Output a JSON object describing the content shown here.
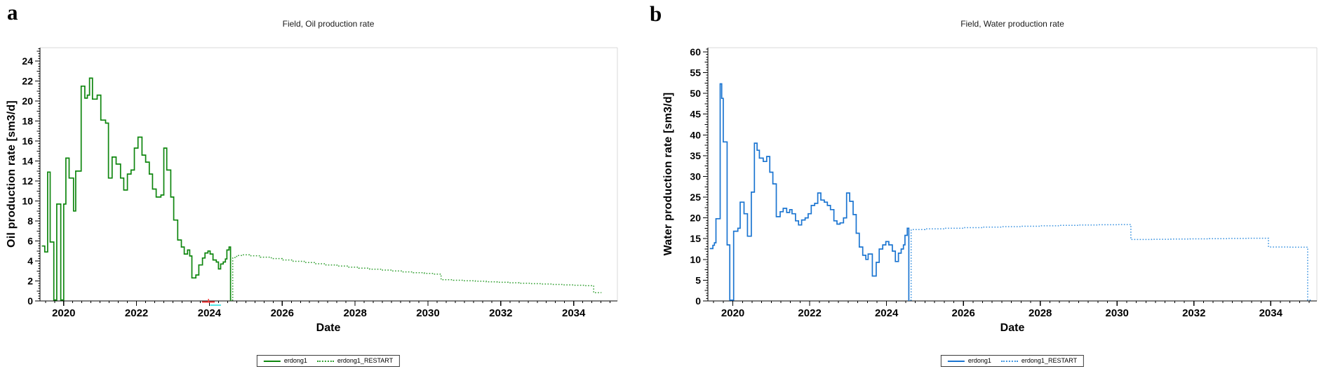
{
  "chart_data": [
    {
      "type": "line",
      "panel_label": "a",
      "title": "Field, Oil production rate",
      "xlabel": "Date",
      "ylabel": "Oil production rate [sm3/d]",
      "xlim": [
        2019.35,
        2035.2
      ],
      "ylim": [
        0,
        25.35
      ],
      "xticks": [
        2020,
        2022,
        2024,
        2026,
        2028,
        2030,
        2032,
        2034
      ],
      "yticks": [
        0,
        2,
        4,
        6,
        8,
        10,
        12,
        14,
        16,
        18,
        20,
        22,
        24
      ],
      "y_minor_step": 0.25,
      "y_medium_step": 1,
      "x_minor_step": 0.25,
      "grid": false,
      "step": true,
      "legend_position": "bottom-center",
      "series": [
        {
          "name": "erdong1",
          "style": "solid",
          "color": "#0e860e",
          "points": [
            [
              2019.4,
              5.5
            ],
            [
              2019.48,
              4.9
            ],
            [
              2019.56,
              12.9
            ],
            [
              2019.63,
              5.9
            ],
            [
              2019.73,
              0.1
            ],
            [
              2019.81,
              9.7
            ],
            [
              2019.92,
              0.1
            ],
            [
              2020.0,
              9.7
            ],
            [
              2020.06,
              14.3
            ],
            [
              2020.15,
              12.3
            ],
            [
              2020.27,
              9.0
            ],
            [
              2020.33,
              13.0
            ],
            [
              2020.48,
              21.5
            ],
            [
              2020.58,
              20.3
            ],
            [
              2020.65,
              20.6
            ],
            [
              2020.71,
              22.3
            ],
            [
              2020.79,
              20.2
            ],
            [
              2020.92,
              20.6
            ],
            [
              2021.02,
              18.1
            ],
            [
              2021.15,
              17.8
            ],
            [
              2021.23,
              12.3
            ],
            [
              2021.33,
              14.4
            ],
            [
              2021.44,
              13.7
            ],
            [
              2021.56,
              12.3
            ],
            [
              2021.65,
              11.1
            ],
            [
              2021.75,
              12.7
            ],
            [
              2021.85,
              13.1
            ],
            [
              2021.94,
              15.3
            ],
            [
              2022.04,
              16.4
            ],
            [
              2022.15,
              14.6
            ],
            [
              2022.25,
              13.9
            ],
            [
              2022.35,
              12.7
            ],
            [
              2022.44,
              11.2
            ],
            [
              2022.54,
              10.4
            ],
            [
              2022.67,
              10.6
            ],
            [
              2022.75,
              15.3
            ],
            [
              2022.83,
              13.1
            ],
            [
              2022.94,
              10.4
            ],
            [
              2023.02,
              8.1
            ],
            [
              2023.13,
              6.1
            ],
            [
              2023.23,
              5.4
            ],
            [
              2023.31,
              4.7
            ],
            [
              2023.4,
              5.1
            ],
            [
              2023.46,
              4.5
            ],
            [
              2023.52,
              2.3
            ],
            [
              2023.63,
              2.6
            ],
            [
              2023.71,
              3.6
            ],
            [
              2023.81,
              4.3
            ],
            [
              2023.88,
              4.8
            ],
            [
              2023.96,
              5.0
            ],
            [
              2024.02,
              4.7
            ],
            [
              2024.1,
              4.1
            ],
            [
              2024.19,
              3.9
            ],
            [
              2024.25,
              3.2
            ],
            [
              2024.31,
              3.7
            ],
            [
              2024.38,
              3.9
            ],
            [
              2024.44,
              4.2
            ],
            [
              2024.48,
              5.1
            ],
            [
              2024.54,
              5.4
            ],
            [
              2024.58,
              0.0
            ]
          ]
        },
        {
          "name": "erdong1_RESTART",
          "style": "dotted",
          "color": "#2f9e2f",
          "points": [
            [
              2024.62,
              0.1
            ],
            [
              2024.64,
              4.35
            ],
            [
              2024.75,
              4.55
            ],
            [
              2024.88,
              4.62
            ],
            [
              2025.1,
              4.52
            ],
            [
              2025.4,
              4.38
            ],
            [
              2025.7,
              4.24
            ],
            [
              2026.0,
              4.1
            ],
            [
              2026.3,
              3.97
            ],
            [
              2026.6,
              3.84
            ],
            [
              2026.9,
              3.72
            ],
            [
              2027.2,
              3.6
            ],
            [
              2027.5,
              3.49
            ],
            [
              2027.8,
              3.38
            ],
            [
              2028.1,
              3.28
            ],
            [
              2028.4,
              3.18
            ],
            [
              2028.7,
              3.09
            ],
            [
              2029.0,
              3.0
            ],
            [
              2029.3,
              2.91
            ],
            [
              2029.6,
              2.83
            ],
            [
              2029.9,
              2.75
            ],
            [
              2030.15,
              2.68
            ],
            [
              2030.36,
              2.12
            ],
            [
              2030.7,
              2.07
            ],
            [
              2031.0,
              2.02
            ],
            [
              2031.3,
              1.97
            ],
            [
              2031.6,
              1.92
            ],
            [
              2031.9,
              1.87
            ],
            [
              2032.2,
              1.82
            ],
            [
              2032.5,
              1.77
            ],
            [
              2032.8,
              1.73
            ],
            [
              2033.1,
              1.69
            ],
            [
              2033.4,
              1.65
            ],
            [
              2033.7,
              1.61
            ],
            [
              2034.0,
              1.57
            ],
            [
              2034.3,
              1.53
            ],
            [
              2034.55,
              0.82
            ],
            [
              2034.75,
              0.8
            ]
          ]
        }
      ],
      "axis_markers": [
        {
          "color": "#ff4040",
          "x_start": 2023.8,
          "x_end": 2024.15,
          "row": "on-axis",
          "shape": "dash-with-tick"
        },
        {
          "color": "#55e6e6",
          "x_start": 2024.02,
          "x_end": 2024.32,
          "row": "below-axis",
          "shape": "dash"
        }
      ]
    },
    {
      "type": "line",
      "panel_label": "b",
      "title": "Field, Water production rate",
      "xlabel": "Date",
      "ylabel": "Water production rate [sm3/d]",
      "xlim": [
        2019.35,
        2035.2
      ],
      "ylim": [
        0,
        61
      ],
      "xticks": [
        2020,
        2022,
        2024,
        2026,
        2028,
        2030,
        2032,
        2034
      ],
      "yticks": [
        0,
        5,
        10,
        15,
        20,
        25,
        30,
        35,
        40,
        45,
        50,
        55,
        60
      ],
      "y_minor_step": 0.625,
      "y_medium_step": 2.5,
      "x_minor_step": 0.25,
      "grid": false,
      "step": true,
      "legend_position": "bottom-center",
      "series": [
        {
          "name": "erdong1",
          "style": "solid",
          "color": "#1b75d1",
          "points": [
            [
              2019.4,
              12.6
            ],
            [
              2019.48,
              13.4
            ],
            [
              2019.52,
              14.0
            ],
            [
              2019.56,
              19.8
            ],
            [
              2019.67,
              52.3
            ],
            [
              2019.71,
              48.8
            ],
            [
              2019.75,
              38.3
            ],
            [
              2019.85,
              13.5
            ],
            [
              2019.92,
              0.2
            ],
            [
              2020.02,
              16.8
            ],
            [
              2020.13,
              17.5
            ],
            [
              2020.19,
              23.8
            ],
            [
              2020.29,
              21.0
            ],
            [
              2020.38,
              15.6
            ],
            [
              2020.48,
              26.2
            ],
            [
              2020.56,
              38.0
            ],
            [
              2020.63,
              36.3
            ],
            [
              2020.69,
              34.4
            ],
            [
              2020.79,
              33.6
            ],
            [
              2020.88,
              34.8
            ],
            [
              2020.96,
              31.0
            ],
            [
              2021.04,
              28.2
            ],
            [
              2021.13,
              20.3
            ],
            [
              2021.23,
              21.5
            ],
            [
              2021.31,
              22.3
            ],
            [
              2021.4,
              21.3
            ],
            [
              2021.48,
              22.0
            ],
            [
              2021.54,
              21.0
            ],
            [
              2021.63,
              19.3
            ],
            [
              2021.71,
              18.3
            ],
            [
              2021.79,
              19.5
            ],
            [
              2021.88,
              20.0
            ],
            [
              2021.96,
              21.0
            ],
            [
              2022.04,
              23.0
            ],
            [
              2022.13,
              23.5
            ],
            [
              2022.21,
              26.0
            ],
            [
              2022.29,
              24.3
            ],
            [
              2022.38,
              23.8
            ],
            [
              2022.46,
              23.0
            ],
            [
              2022.54,
              22.0
            ],
            [
              2022.63,
              19.3
            ],
            [
              2022.71,
              18.5
            ],
            [
              2022.79,
              18.8
            ],
            [
              2022.88,
              20.0
            ],
            [
              2022.96,
              26.0
            ],
            [
              2023.04,
              24.0
            ],
            [
              2023.13,
              20.8
            ],
            [
              2023.21,
              16.3
            ],
            [
              2023.29,
              13.0
            ],
            [
              2023.38,
              11.0
            ],
            [
              2023.46,
              10.0
            ],
            [
              2023.52,
              11.3
            ],
            [
              2023.63,
              6.0
            ],
            [
              2023.73,
              9.3
            ],
            [
              2023.81,
              12.5
            ],
            [
              2023.9,
              13.5
            ],
            [
              2023.98,
              14.3
            ],
            [
              2024.06,
              13.5
            ],
            [
              2024.15,
              12.0
            ],
            [
              2024.23,
              9.5
            ],
            [
              2024.31,
              11.5
            ],
            [
              2024.38,
              12.5
            ],
            [
              2024.44,
              13.5
            ],
            [
              2024.48,
              15.8
            ],
            [
              2024.54,
              17.5
            ],
            [
              2024.58,
              0.0
            ]
          ]
        },
        {
          "name": "erdong1_RESTART",
          "style": "dotted",
          "color": "#3b93e0",
          "points": [
            [
              2024.62,
              0.2
            ],
            [
              2024.64,
              17.2
            ],
            [
              2025.0,
              17.35
            ],
            [
              2025.5,
              17.5
            ],
            [
              2026.0,
              17.65
            ],
            [
              2026.5,
              17.8
            ],
            [
              2027.0,
              17.9
            ],
            [
              2027.5,
              18.0
            ],
            [
              2028.0,
              18.1
            ],
            [
              2028.5,
              18.2
            ],
            [
              2029.0,
              18.3
            ],
            [
              2029.5,
              18.35
            ],
            [
              2030.0,
              18.4
            ],
            [
              2030.36,
              14.8
            ],
            [
              2030.9,
              14.85
            ],
            [
              2031.4,
              14.9
            ],
            [
              2031.9,
              14.95
            ],
            [
              2032.4,
              15.0
            ],
            [
              2032.9,
              15.05
            ],
            [
              2033.4,
              15.1
            ],
            [
              2033.94,
              13.0
            ],
            [
              2034.5,
              12.95
            ],
            [
              2034.96,
              0.2
            ],
            [
              2035.08,
              0.2
            ]
          ]
        }
      ],
      "axis_markers": []
    }
  ],
  "colors": {
    "axis": "#000000",
    "frame": "#d9d9d9",
    "background": "#ffffff"
  }
}
